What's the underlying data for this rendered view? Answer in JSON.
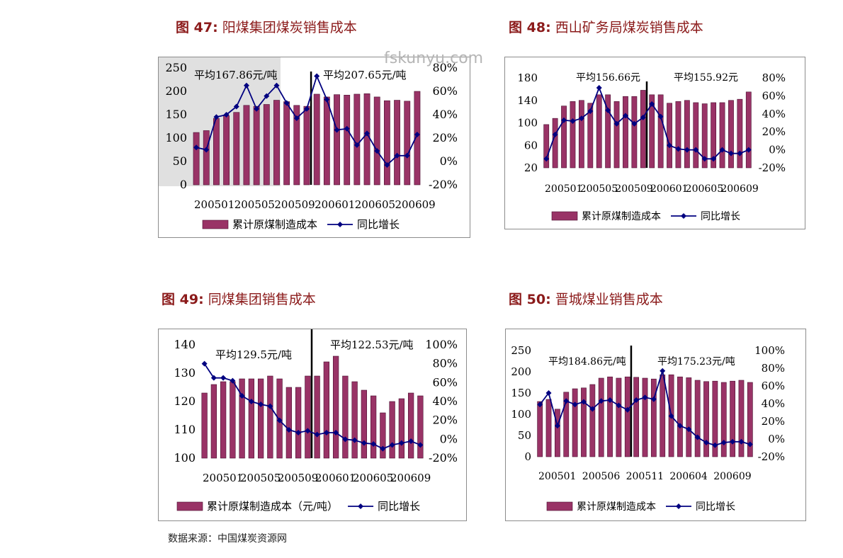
{
  "watermark": "fskunyu.com",
  "source_note": "数据来源：中国煤炭资源网",
  "colors": {
    "bar": "#993366",
    "line": "#000080",
    "title": "#8b1a1a",
    "shade": "#e0e0e0"
  },
  "charts": [
    {
      "fig_label": "图 47",
      "fig_sep": ":",
      "fig_name": "阳煤集团煤炭销售成本"
    },
    {
      "fig_label": "图 48",
      "fig_sep": ":",
      "fig_name": "西山矿务局煤炭销售成本"
    },
    {
      "fig_label": "图 49",
      "fig_sep": ":",
      "fig_name": "同煤集团销售成本"
    },
    {
      "fig_label": "图 50",
      "fig_sep": ":",
      "fig_name": "晋城煤业销售成本"
    }
  ],
  "chart_data": [
    {
      "type": "bar",
      "title": "阳煤集团煤炭销售成本",
      "legend": [
        "累计原煤制造成本",
        "同比增长"
      ],
      "x_tick_labels": [
        "200501",
        "200505",
        "200509",
        "200601",
        "200605",
        "200609"
      ],
      "ylim": [
        0,
        250
      ],
      "y_ticks": [
        "0",
        "50",
        "100",
        "150",
        "200",
        "250"
      ],
      "y2lim": [
        -0.2,
        0.8
      ],
      "y2_ticks": [
        "-20%",
        "0%",
        "20%",
        "40%",
        "60%",
        "80%"
      ],
      "shaded_region": true,
      "annotations": [
        "平均167.86元/吨",
        "平均207.65元/吨"
      ],
      "series": [
        {
          "name": "累计原煤制造成本",
          "kind": "bar",
          "values": [
            112,
            116,
            142,
            148,
            155,
            170,
            168,
            172,
            181,
            178,
            170,
            168,
            194,
            188,
            193,
            192,
            194,
            195,
            188,
            180,
            181,
            179,
            200
          ]
        },
        {
          "name": "同比增长",
          "kind": "line",
          "values": [
            0.12,
            0.1,
            0.38,
            0.4,
            0.47,
            0.65,
            0.45,
            0.56,
            0.65,
            0.5,
            0.37,
            0.45,
            0.73,
            0.53,
            0.27,
            0.28,
            0.14,
            0.24,
            0.09,
            -0.03,
            0.05,
            0.05,
            0.23
          ]
        }
      ]
    },
    {
      "type": "bar",
      "title": "西山矿务局煤炭销售成本",
      "legend": [
        "累计原煤制造成本",
        "同比增长"
      ],
      "x_tick_labels": [
        "200501",
        "200505",
        "200509",
        "200601",
        "200605",
        "200609"
      ],
      "ylim": [
        20,
        180
      ],
      "y_ticks": [
        "20",
        "60",
        "100",
        "140",
        "180"
      ],
      "y2lim": [
        -0.2,
        0.8
      ],
      "y2_ticks": [
        "-20%",
        "0%",
        "20%",
        "40%",
        "60%",
        "80%"
      ],
      "annotations": [
        "平均156.66元",
        "平均155.92元"
      ],
      "series": [
        {
          "name": "累计原煤制造成本",
          "kind": "bar",
          "values": [
            97,
            108,
            130,
            138,
            140,
            135,
            150,
            150,
            138,
            147,
            147,
            158,
            150,
            150,
            135,
            138,
            140,
            136,
            134,
            136,
            136,
            140,
            142,
            155
          ]
        },
        {
          "name": "同比增长",
          "kind": "line",
          "values": [
            -0.1,
            0.17,
            0.33,
            0.32,
            0.35,
            0.43,
            0.69,
            0.44,
            0.29,
            0.38,
            0.29,
            0.36,
            0.51,
            0.37,
            0.05,
            0.01,
            0.0,
            0.0,
            -0.1,
            -0.1,
            0.0,
            -0.04,
            -0.04,
            0.0
          ]
        }
      ]
    },
    {
      "type": "bar",
      "title": "同煤集团销售成本",
      "legend": [
        "累计原煤制造成本（元/吨）",
        "同比增长"
      ],
      "x_tick_labels": [
        "200501",
        "200505",
        "200509",
        "200601",
        "200605",
        "200609"
      ],
      "ylim": [
        100,
        140
      ],
      "y_ticks": [
        "100",
        "110",
        "120",
        "130",
        "140"
      ],
      "y2lim": [
        -0.2,
        1.0
      ],
      "y2_ticks": [
        "-20%",
        "0%",
        "20%",
        "40%",
        "60%",
        "80%",
        "100%"
      ],
      "annotations": [
        "平均129.5元/吨",
        "平均122.53元/吨"
      ],
      "series": [
        {
          "name": "累计原煤制造成本（元/吨）",
          "kind": "bar",
          "values": [
            123,
            126,
            127,
            127,
            128,
            128,
            128,
            129,
            128,
            125,
            125,
            129,
            129,
            134,
            136,
            129,
            127,
            124,
            122,
            116,
            120,
            121,
            123,
            122
          ]
        },
        {
          "name": "同比增长",
          "kind": "line",
          "values": [
            0.8,
            0.65,
            0.65,
            0.62,
            0.46,
            0.4,
            0.37,
            0.35,
            0.2,
            0.1,
            0.07,
            0.09,
            0.05,
            0.07,
            0.07,
            0.0,
            -0.01,
            -0.04,
            -0.05,
            -0.1,
            -0.06,
            -0.04,
            -0.02,
            -0.06
          ]
        }
      ]
    },
    {
      "type": "bar",
      "title": "晋城煤业销售成本",
      "legend": [
        "累计原煤制造成本",
        "同比增长"
      ],
      "x_tick_labels": [
        "200501",
        "200506",
        "200511",
        "200604",
        "200609"
      ],
      "ylim": [
        0,
        250
      ],
      "y_ticks": [
        "0",
        "50",
        "100",
        "150",
        "200",
        "250"
      ],
      "y2lim": [
        -0.2,
        1.0
      ],
      "y2_ticks": [
        "-20%",
        "0%",
        "20%",
        "40%",
        "60%",
        "80%",
        "100%"
      ],
      "annotations": [
        "平均184.86元/吨",
        "平均175.23元/吨"
      ],
      "series": [
        {
          "name": "累计原煤制造成本",
          "kind": "bar",
          "values": [
            130,
            135,
            112,
            152,
            160,
            162,
            170,
            185,
            188,
            185,
            188,
            187,
            185,
            183,
            193,
            193,
            188,
            186,
            180,
            177,
            178,
            175,
            178,
            180,
            175
          ]
        },
        {
          "name": "同比增长",
          "kind": "line",
          "values": [
            0.39,
            0.52,
            0.15,
            0.43,
            0.39,
            0.42,
            0.34,
            0.43,
            0.44,
            0.38,
            0.33,
            0.44,
            0.47,
            0.45,
            0.77,
            0.26,
            0.15,
            0.11,
            0.02,
            -0.04,
            -0.07,
            -0.04,
            -0.03,
            -0.03,
            -0.06
          ]
        }
      ]
    }
  ]
}
